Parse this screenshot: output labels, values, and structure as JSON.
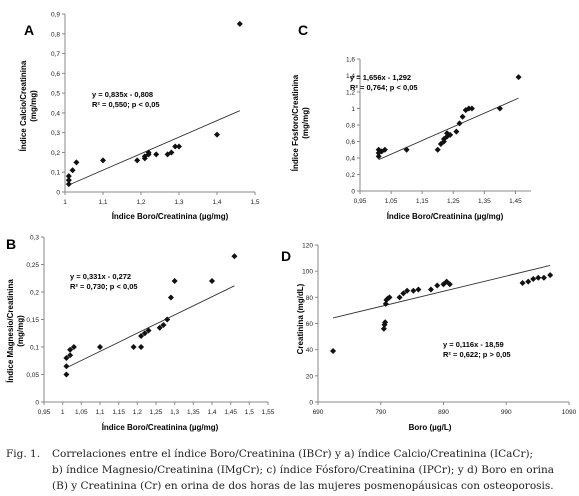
{
  "caption": {
    "label": "Fig. 1.",
    "line1": "Correlaciones entre el índice Boro/Creatinina (IBCr) y a) índice Calcio/Creatinina (ICaCr);",
    "line2": "b) índice Magnesio/Creatinina (IMgCr); c) índice Fósforo/Creatinina (IPCr); y d) Boro en orina",
    "line3": "(B) y Creatinina (Cr) en orina de dos horas de las mujeres posmenopáusicas con osteoporosis."
  },
  "chart_data": [
    {
      "type": "scatter",
      "panel": "A",
      "xlabel": "Índice Boro/Creatinina (µg/mg)",
      "ylabel_line1": "Índice Calcio/Creatinina",
      "ylabel_line2": "(mg/mg)",
      "xlim": [
        1,
        1.5
      ],
      "ylim": [
        0,
        0.9
      ],
      "xticks": [
        1,
        1.1,
        1.2,
        1.3,
        1.4,
        1.5
      ],
      "xtick_labels": [
        "1",
        "1,1",
        "1,2",
        "1,3",
        "1,4",
        "1,5"
      ],
      "yticks": [
        0,
        0.1,
        0.2,
        0.3,
        0.4,
        0.5,
        0.6,
        0.7,
        0.8,
        0.9
      ],
      "ytick_labels": [
        "0",
        "0,1",
        "0,2",
        "0,3",
        "0,4",
        "0,5",
        "0,6",
        "0,7",
        "0,8",
        "0,9"
      ],
      "points": [
        [
          1.01,
          0.04
        ],
        [
          1.01,
          0.06
        ],
        [
          1.01,
          0.08
        ],
        [
          1.02,
          0.11
        ],
        [
          1.03,
          0.15
        ],
        [
          1.1,
          0.16
        ],
        [
          1.19,
          0.16
        ],
        [
          1.21,
          0.17
        ],
        [
          1.21,
          0.18
        ],
        [
          1.22,
          0.19
        ],
        [
          1.22,
          0.2
        ],
        [
          1.24,
          0.19
        ],
        [
          1.27,
          0.19
        ],
        [
          1.28,
          0.2
        ],
        [
          1.29,
          0.23
        ],
        [
          1.3,
          0.23
        ],
        [
          1.4,
          0.29
        ],
        [
          1.46,
          0.85
        ]
      ],
      "trend": {
        "slope": 0.835,
        "intercept": -0.808
      },
      "equation": "y = 0,835x - 0,808",
      "r2_text": "R² = 0,550;  p < 0,05",
      "axis_decimals": 1
    },
    {
      "type": "scatter",
      "panel": "B",
      "xlabel": "Índice Boro/Creatinina (µg/mg)",
      "ylabel_line1": "Índice Magnesio/Creatinina",
      "ylabel_line2": "(mg/mg)",
      "xlim": [
        0.95,
        1.55
      ],
      "ylim": [
        0,
        0.3
      ],
      "xticks": [
        0.95,
        1.0,
        1.05,
        1.1,
        1.15,
        1.2,
        1.25,
        1.3,
        1.35,
        1.4,
        1.45,
        1.5,
        1.55
      ],
      "xtick_labels": [
        "0,95",
        "1",
        "1,05",
        "1,1",
        "1,15",
        "1,2",
        "1,25",
        "1,3",
        "1,35",
        "1,4",
        "1,45",
        "1,5",
        "1,55"
      ],
      "yticks": [
        0,
        0.05,
        0.1,
        0.15,
        0.2,
        0.25,
        0.3
      ],
      "ytick_labels": [
        "0",
        "0,05",
        "0,1",
        "0,15",
        "0,2",
        "0,25",
        "0,3"
      ],
      "points": [
        [
          1.01,
          0.05
        ],
        [
          1.01,
          0.065
        ],
        [
          1.01,
          0.08
        ],
        [
          1.02,
          0.085
        ],
        [
          1.02,
          0.095
        ],
        [
          1.03,
          0.1
        ],
        [
          1.1,
          0.1
        ],
        [
          1.19,
          0.1
        ],
        [
          1.21,
          0.1
        ],
        [
          1.21,
          0.12
        ],
        [
          1.22,
          0.125
        ],
        [
          1.23,
          0.13
        ],
        [
          1.26,
          0.135
        ],
        [
          1.27,
          0.14
        ],
        [
          1.28,
          0.15
        ],
        [
          1.29,
          0.19
        ],
        [
          1.3,
          0.22
        ],
        [
          1.4,
          0.22
        ],
        [
          1.46,
          0.265
        ]
      ],
      "trend": {
        "slope": 0.331,
        "intercept": -0.272
      },
      "equation": "y = 0,331x - 0,272",
      "r2_text": "R² = 0,730;  p < 0,05",
      "axis_decimals": 2
    },
    {
      "type": "scatter",
      "panel": "C",
      "xlabel": "Índice Boro/Creatinina (µg/mg)",
      "ylabel_line1": "Índice Fósforo/Creatinina",
      "ylabel_line2": "(mg/mg)",
      "xlim": [
        0.95,
        1.5
      ],
      "ylim": [
        0,
        1.6
      ],
      "xticks": [
        0.95,
        1.05,
        1.15,
        1.25,
        1.35,
        1.45
      ],
      "xtick_labels": [
        "0,95",
        "1,05",
        "1,15",
        "1,25",
        "1,35",
        "1,45"
      ],
      "yticks": [
        0,
        0.2,
        0.4,
        0.6,
        0.8,
        1.0,
        1.2,
        1.4,
        1.6
      ],
      "ytick_labels": [
        "0",
        "0,2",
        "0,4",
        "0,6",
        "0,8",
        "1",
        "1,2",
        "1,4",
        "1,6"
      ],
      "points": [
        [
          1.01,
          0.42
        ],
        [
          1.01,
          0.46
        ],
        [
          1.01,
          0.5
        ],
        [
          1.02,
          0.48
        ],
        [
          1.03,
          0.5
        ],
        [
          1.1,
          0.5
        ],
        [
          1.2,
          0.5
        ],
        [
          1.21,
          0.57
        ],
        [
          1.22,
          0.6
        ],
        [
          1.22,
          0.63
        ],
        [
          1.23,
          0.66
        ],
        [
          1.23,
          0.7
        ],
        [
          1.24,
          0.68
        ],
        [
          1.26,
          0.72
        ],
        [
          1.27,
          0.82
        ],
        [
          1.28,
          0.9
        ],
        [
          1.29,
          0.98
        ],
        [
          1.3,
          1.0
        ],
        [
          1.31,
          1.0
        ],
        [
          1.4,
          1.0
        ],
        [
          1.46,
          1.38
        ]
      ],
      "trend": {
        "slope": 1.656,
        "intercept": -1.292
      },
      "equation": "y = 1,656x - 1,292",
      "r2_text": "R² = 0,764;  p < 0,05",
      "axis_decimals": 1
    },
    {
      "type": "scatter",
      "panel": "D",
      "xlabel": "Boro  (µg/L)",
      "ylabel_line1": "Creatinina (mg/dL)",
      "ylabel_line2": "",
      "xlim": [
        690,
        1090
      ],
      "ylim": [
        0,
        120
      ],
      "xticks": [
        690,
        790,
        890,
        990,
        1090
      ],
      "xtick_labels": [
        "690",
        "790",
        "890",
        "990",
        "1090"
      ],
      "yticks": [
        0,
        20,
        40,
        60,
        80,
        100,
        120
      ],
      "ytick_labels": [
        "0",
        "20",
        "40",
        "60",
        "80",
        "100",
        "120"
      ],
      "points": [
        [
          714,
          39
        ],
        [
          795,
          56
        ],
        [
          796,
          59
        ],
        [
          797,
          61
        ],
        [
          798,
          75
        ],
        [
          799,
          78
        ],
        [
          801,
          79
        ],
        [
          804,
          80
        ],
        [
          820,
          80
        ],
        [
          826,
          83
        ],
        [
          832,
          85
        ],
        [
          842,
          85
        ],
        [
          850,
          86
        ],
        [
          870,
          86
        ],
        [
          880,
          89
        ],
        [
          890,
          90
        ],
        [
          895,
          92
        ],
        [
          900,
          90
        ],
        [
          1016,
          91
        ],
        [
          1025,
          92
        ],
        [
          1033,
          94
        ],
        [
          1041,
          95
        ],
        [
          1050,
          95
        ],
        [
          1060,
          97
        ]
      ],
      "trend": {
        "slope": 0.116,
        "intercept": -18.59
      },
      "equation": "y = 0,116x - 18,59",
      "r2_text": "R² = 0,622; p > 0,05",
      "axis_decimals": 0
    }
  ]
}
